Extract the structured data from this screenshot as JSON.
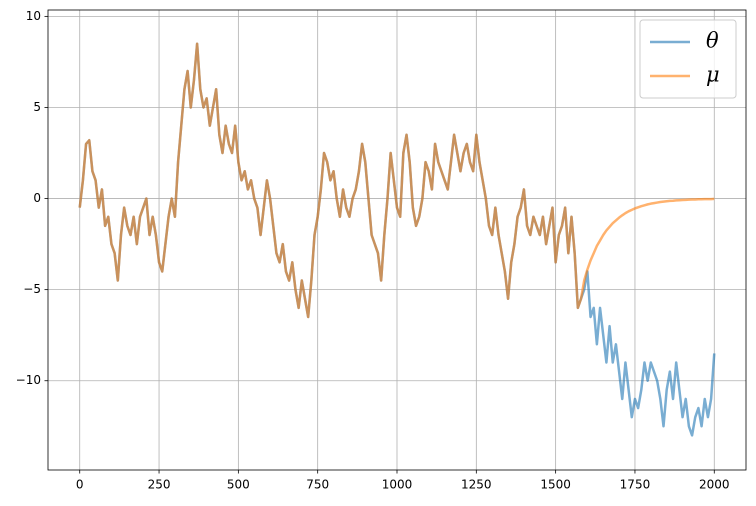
{
  "chart_data": {
    "type": "line",
    "x": [
      0,
      10,
      20,
      30,
      40,
      50,
      60,
      70,
      80,
      90,
      100,
      110,
      120,
      130,
      140,
      150,
      160,
      170,
      180,
      190,
      200,
      210,
      220,
      230,
      240,
      250,
      260,
      270,
      280,
      290,
      300,
      310,
      320,
      330,
      340,
      350,
      360,
      370,
      380,
      390,
      400,
      410,
      420,
      430,
      440,
      450,
      460,
      470,
      480,
      490,
      500,
      510,
      520,
      530,
      540,
      550,
      560,
      570,
      580,
      590,
      600,
      610,
      620,
      630,
      640,
      650,
      660,
      670,
      680,
      690,
      700,
      710,
      720,
      730,
      740,
      750,
      760,
      770,
      780,
      790,
      800,
      810,
      820,
      830,
      840,
      850,
      860,
      870,
      880,
      890,
      900,
      910,
      920,
      930,
      940,
      950,
      960,
      970,
      980,
      990,
      1000,
      1010,
      1020,
      1030,
      1040,
      1050,
      1060,
      1070,
      1080,
      1090,
      1100,
      1110,
      1120,
      1130,
      1140,
      1150,
      1160,
      1170,
      1180,
      1190,
      1200,
      1210,
      1220,
      1230,
      1240,
      1250,
      1260,
      1270,
      1280,
      1290,
      1300,
      1310,
      1320,
      1330,
      1340,
      1350,
      1360,
      1370,
      1380,
      1390,
      1400,
      1410,
      1420,
      1430,
      1440,
      1450,
      1460,
      1470,
      1480,
      1490,
      1500,
      1510,
      1520,
      1530,
      1540,
      1550,
      1560,
      1570,
      1580,
      1590,
      1600,
      1610,
      1620,
      1630,
      1640,
      1650,
      1660,
      1670,
      1680,
      1690,
      1700,
      1710,
      1720,
      1730,
      1740,
      1750,
      1760,
      1770,
      1780,
      1790,
      1800,
      1810,
      1820,
      1830,
      1840,
      1850,
      1860,
      1870,
      1880,
      1890,
      1900,
      1910,
      1920,
      1930,
      1940,
      1950,
      1960,
      1970,
      1980,
      1990,
      2000
    ],
    "series": [
      {
        "name": "θ",
        "color": "#1f77b4",
        "values": [
          -0.5,
          1,
          3,
          3.2,
          1.5,
          1,
          -0.5,
          0.5,
          -1.5,
          -1,
          -2.5,
          -3,
          -4.5,
          -2,
          -0.5,
          -1.5,
          -2,
          -1,
          -2.5,
          -1,
          -0.5,
          0,
          -2,
          -1,
          -2,
          -3.5,
          -4,
          -2.5,
          -1,
          0,
          -1,
          2,
          4,
          6,
          7,
          5,
          6.5,
          8.5,
          6,
          5,
          5.5,
          4,
          5,
          6,
          3.5,
          2.5,
          4,
          3,
          2.5,
          4,
          2,
          1,
          1.5,
          0.5,
          1,
          0,
          -0.5,
          -2,
          -0.5,
          1,
          0,
          -1.5,
          -3,
          -3.5,
          -2.5,
          -4,
          -4.5,
          -3.5,
          -5,
          -6,
          -4.5,
          -5.5,
          -6.5,
          -4.5,
          -2,
          -1,
          0.5,
          2.5,
          2,
          1,
          1.5,
          0,
          -1,
          0.5,
          -0.5,
          -1,
          0,
          0.5,
          1.5,
          3,
          2,
          0,
          -2,
          -2.5,
          -3,
          -4.5,
          -2,
          0,
          2.5,
          1,
          -0.5,
          -1,
          2.5,
          3.5,
          2,
          -0.5,
          -1.5,
          -1,
          0,
          2,
          1.5,
          0.5,
          3,
          2,
          1.5,
          1,
          0.5,
          2,
          3.5,
          2.5,
          1.5,
          2.5,
          3,
          2,
          1.5,
          3.5,
          2,
          1,
          0,
          -1.5,
          -2,
          -0.5,
          -2,
          -3,
          -4,
          -5.5,
          -3.5,
          -2.5,
          -1,
          -0.5,
          0.5,
          -1.5,
          -2,
          -1,
          -1.5,
          -2,
          -1,
          -2.5,
          -1.5,
          -0.5,
          -3.5,
          -2,
          -1.5,
          -0.5,
          -3,
          -1,
          -3,
          -6,
          -5.5,
          -5,
          -4,
          -6.5,
          -6,
          -8,
          -6,
          -7.5,
          -9,
          -7,
          -9,
          -8,
          -9.5,
          -11,
          -9,
          -10.5,
          -12,
          -11,
          -11.5,
          -10.5,
          -9,
          -10,
          -9,
          -9.5,
          -10,
          -11,
          -12.5,
          -10.5,
          -9.5,
          -11,
          -9,
          -10.5,
          -12,
          -11,
          -12.5,
          -13,
          -12,
          -11.5,
          -12.5,
          -11,
          -12,
          -11,
          -8.5
        ]
      },
      {
        "name": "μ",
        "color": "#ff7f0e",
        "values": [
          -0.5,
          1,
          3,
          3.2,
          1.5,
          1,
          -0.5,
          0.5,
          -1.5,
          -1,
          -2.5,
          -3,
          -4.5,
          -2,
          -0.5,
          -1.5,
          -2,
          -1,
          -2.5,
          -1,
          -0.5,
          0,
          -2,
          -1,
          -2,
          -3.5,
          -4,
          -2.5,
          -1,
          0,
          -1,
          2,
          4,
          6,
          7,
          5,
          6.5,
          8.5,
          6,
          5,
          5.5,
          4,
          5,
          6,
          3.5,
          2.5,
          4,
          3,
          2.5,
          4,
          2,
          1,
          1.5,
          0.5,
          1,
          0,
          -0.5,
          -2,
          -0.5,
          1,
          0,
          -1.5,
          -3,
          -3.5,
          -2.5,
          -4,
          -4.5,
          -3.5,
          -5,
          -6,
          -4.5,
          -5.5,
          -6.5,
          -4.5,
          -2,
          -1,
          0.5,
          2.5,
          2,
          1,
          1.5,
          0,
          -1,
          0.5,
          -0.5,
          -1,
          0,
          0.5,
          1.5,
          3,
          2,
          0,
          -2,
          -2.5,
          -3,
          -4.5,
          -2,
          0,
          2.5,
          1,
          -0.5,
          -1,
          2.5,
          3.5,
          2,
          -0.5,
          -1.5,
          -1,
          0,
          2,
          1.5,
          0.5,
          3,
          2,
          1.5,
          1,
          0.5,
          2,
          3.5,
          2.5,
          1.5,
          2.5,
          3,
          2,
          1.5,
          3.5,
          2,
          1,
          0,
          -1.5,
          -2,
          -0.5,
          -2,
          -3,
          -4,
          -5.5,
          -3.5,
          -2.5,
          -1,
          -0.5,
          0.5,
          -1.5,
          -2,
          -1,
          -1.5,
          -2,
          -1,
          -2.5,
          -1.5,
          -0.5,
          -3.5,
          -2,
          -1.5,
          -0.5,
          -3,
          -1,
          -3,
          -6,
          -5.5,
          -4.5,
          -3.9,
          -3.4,
          -3,
          -2.6,
          -2.3,
          -2,
          -1.75,
          -1.55,
          -1.35,
          -1.2,
          -1.05,
          -0.92,
          -0.8,
          -0.7,
          -0.62,
          -0.54,
          -0.48,
          -0.42,
          -0.37,
          -0.32,
          -0.28,
          -0.25,
          -0.22,
          -0.19,
          -0.17,
          -0.15,
          -0.13,
          -0.12,
          -0.1,
          -0.09,
          -0.08,
          -0.07,
          -0.06,
          -0.05,
          -0.05,
          -0.04,
          -0.04,
          -0.03,
          -0.03,
          -0.03,
          -0.02
        ]
      }
    ],
    "xlim": [
      -100,
      2100
    ],
    "xticks": [
      0,
      250,
      500,
      750,
      1000,
      1250,
      1500,
      1750,
      2000
    ],
    "ylim": [
      -14.9,
      10.35
    ],
    "yticks": [
      {
        "value": -10,
        "label": "−10"
      },
      {
        "value": -5,
        "label": "−5"
      },
      0,
      5,
      10
    ],
    "grid": true,
    "legend": "upper right"
  }
}
